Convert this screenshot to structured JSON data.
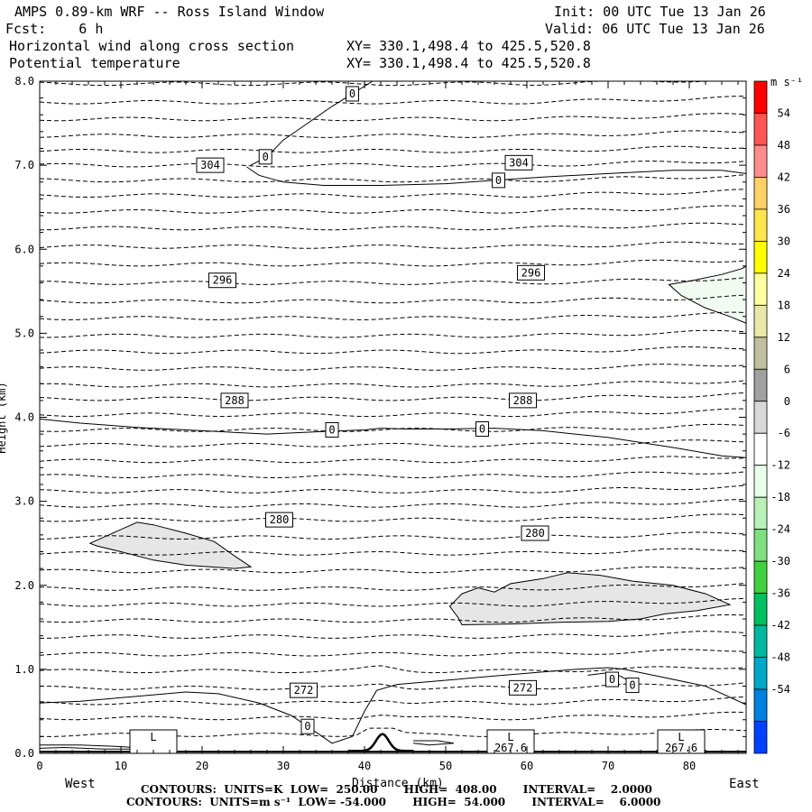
{
  "header": {
    "title": "AMPS 0.89-km WRF -- Ross Island Window",
    "init": "Init: 00 UTC Tue 13 Jan 26",
    "fcst": "Fcst:    6 h",
    "valid": "Valid: 06 UTC Tue 13 Jan 26",
    "line3": "Horizontal wind along cross section",
    "xy1": "XY= 330.1,498.4 to 425.5,520.8",
    "line4": "Potential temperature",
    "xy2": "XY= 330.1,498.4 to 425.5,520.8"
  },
  "footer": {
    "west": "West",
    "east": "East",
    "xlabel": "Distance (km)",
    "ylabel": "Height (km)",
    "contours1": "CONTOURS:  UNITS=K  LOW=  250.00       HIGH=  408.00       INTERVAL=    2.0000",
    "contours2": "CONTOURS:  UNITS=m s⁻¹  LOW= -54.000       HIGH=  54.000       INTERVAL=    6.0000"
  },
  "chart_data": {
    "type": "contour",
    "xlabel": "Distance (km)",
    "ylabel": "Height (km)",
    "xlim": [
      0,
      87
    ],
    "ylim": [
      0,
      8
    ],
    "xticks": [
      0,
      10,
      20,
      30,
      40,
      50,
      60,
      70,
      80
    ],
    "yticks": [
      "0.0",
      "1.0",
      "2.0",
      "3.0",
      "4.0",
      "5.0",
      "6.0",
      "7.0",
      "8.0"
    ],
    "theta_contour_levels_K": [
      270,
      272,
      274,
      276,
      278,
      280,
      282,
      284,
      286,
      288,
      290,
      292,
      294,
      296,
      298,
      300,
      302,
      304,
      306
    ],
    "theta_labels": [
      {
        "text": "304",
        "x": 21,
        "y": 7.0
      },
      {
        "text": "304",
        "x": 59,
        "y": 7.03
      },
      {
        "text": "296",
        "x": 22.5,
        "y": 5.63
      },
      {
        "text": "296",
        "x": 60.5,
        "y": 5.72
      },
      {
        "text": "288",
        "x": 24,
        "y": 4.2
      },
      {
        "text": "288",
        "x": 59.5,
        "y": 4.2
      },
      {
        "text": "280",
        "x": 29.5,
        "y": 2.78
      },
      {
        "text": "280",
        "x": 61,
        "y": 2.62
      },
      {
        "text": "272",
        "x": 32.5,
        "y": 0.75
      },
      {
        "text": "272",
        "x": 59.5,
        "y": 0.78
      }
    ],
    "wind_zero_labels": [
      {
        "text": "0",
        "x": 38.5,
        "y": 7.85
      },
      {
        "text": "0",
        "x": 27.8,
        "y": 7.1
      },
      {
        "text": "0",
        "x": 56.5,
        "y": 6.82
      },
      {
        "text": "0",
        "x": 36,
        "y": 3.85
      },
      {
        "text": "0",
        "x": 54.5,
        "y": 3.86
      },
      {
        "text": "0",
        "x": 33,
        "y": 0.32
      },
      {
        "text": "0",
        "x": 70.5,
        "y": 0.88
      },
      {
        "text": "0",
        "x": 73,
        "y": 0.81
      }
    ],
    "low_labels": [
      {
        "text": "L",
        "sub": "",
        "x": 14
      },
      {
        "text": "L",
        "sub": "267.6",
        "x": 58
      },
      {
        "text": "L",
        "sub": "267.6",
        "x": 79
      }
    ],
    "colorbar": {
      "units": "m s⁻¹",
      "labels": [
        "54",
        "48",
        "42",
        "36",
        "30",
        "24",
        "18",
        "12",
        "6",
        "0",
        "-6",
        "-12",
        "-18",
        "-24",
        "-30",
        "-36",
        "-42",
        "-48",
        "-54"
      ],
      "colors": [
        "#ff0000",
        "#ff5555",
        "#ff8c8c",
        "#ffd166",
        "#ffe54c",
        "#ffff00",
        "#ffffa0",
        "#e8e8a8",
        "#c0c0a0",
        "#a0a0a0",
        "#d8d8d8",
        "#ffffff",
        "#e8ffe8",
        "#b8f0b8",
        "#80e080",
        "#40d040",
        "#00c060",
        "#00b8a0",
        "#00a8c8",
        "#0080e0",
        "#0040ff"
      ]
    }
  }
}
